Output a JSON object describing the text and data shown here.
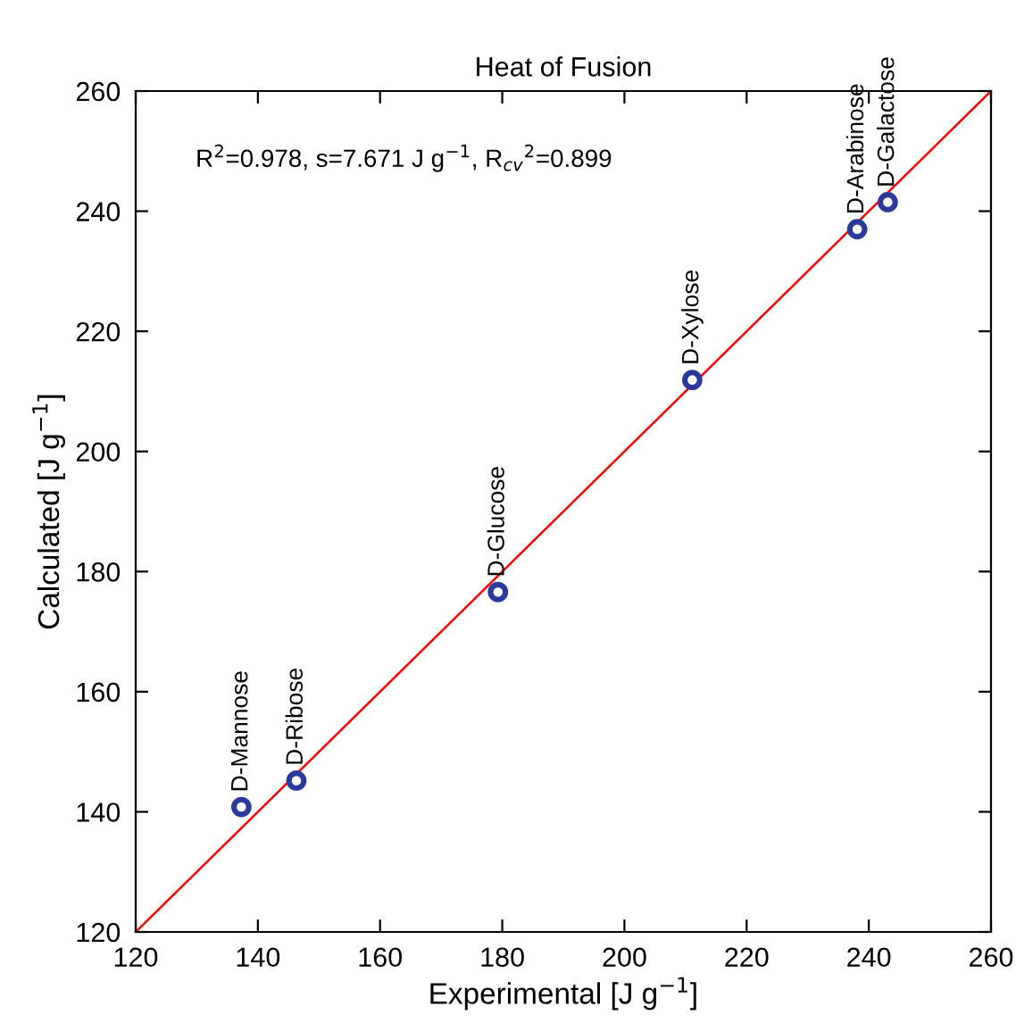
{
  "chart_data": {
    "type": "scatter",
    "title": "Heat of Fusion",
    "xlabel": "Experimental [J g$^{−1}$]",
    "ylabel": "Calculated [J g$^{−1}$]",
    "series": [
      {
        "color": "#2b3a9a",
        "marker": "circle",
        "x": [
          137.3,
          146.3,
          179.3,
          211.1,
          238.1,
          243.1
        ],
        "values": [
          140.8,
          145.2,
          176.6,
          211.9,
          237.0,
          241.5
        ]
      },
      {
        "type": "line",
        "color": "#ff0000",
        "x": [
          120,
          260
        ],
        "values": [
          120,
          260
        ]
      }
    ],
    "annotations": [
      "R$^{2}$=0.978, s=7.671 J g$^{−1}$, R$_{cv}$$^{2}$=0.899",
      {
        "text": "D-Mannose",
        "x": 137.3,
        "y": 140.8
      },
      {
        "text": "D-Ribose",
        "x": 146.3,
        "y": 145.2
      },
      {
        "text": "D-Glucose",
        "x": 179.3,
        "y": 176.6
      },
      {
        "text": "D-Xylose",
        "x": 211.1,
        "y": 211.9
      },
      {
        "text": "D-Arabinose",
        "x": 238.1,
        "y": 237.0
      },
      {
        "text": "D-Galactose",
        "x": 243.1,
        "y": 241.5
      }
    ],
    "xlim": [
      120,
      260
    ],
    "ylim": [
      120,
      260
    ],
    "xticks": [
      120,
      140,
      160,
      180,
      200,
      220,
      240,
      260
    ],
    "yticks": [
      120,
      140,
      160,
      180,
      200,
      220,
      240,
      260
    ],
    "grid": false,
    "legend": false
  }
}
